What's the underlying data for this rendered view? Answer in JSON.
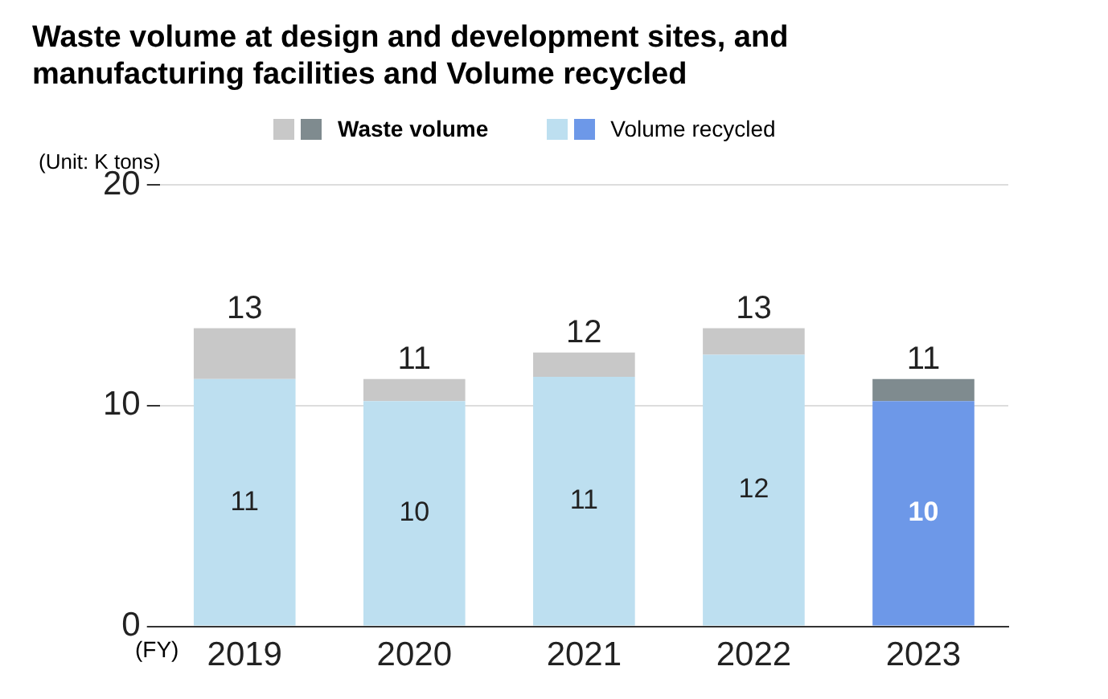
{
  "chart_data": {
    "type": "bar",
    "title": "Waste volume at design and development sites, and manufacturing facilities and Volume recycled",
    "categories": [
      "2019",
      "2020",
      "2021",
      "2022",
      "2023"
    ],
    "stacked": true,
    "series": [
      {
        "name": "Volume recycled",
        "color": "#bddff0",
        "colors": [
          "#bddff0",
          "#bddff0",
          "#bddff0",
          "#bddff0",
          "#6d98e8"
        ],
        "values": [
          11.2,
          10.2,
          11.3,
          12.3,
          10.2
        ],
        "value_labels": [
          "11",
          "10",
          "11",
          "12",
          "10"
        ]
      },
      {
        "name": "Waste volume",
        "color": "#c8c8c8",
        "colors": [
          "#c8c8c8",
          "#c8c8c8",
          "#c8c8c8",
          "#c8c8c8",
          "#7f8b8f"
        ],
        "values": [
          2.3,
          1.0,
          1.1,
          1.2,
          1.0
        ]
      }
    ],
    "totals": [
      "13",
      "11",
      "12",
      "13",
      "11"
    ],
    "ylim": [
      0,
      20
    ],
    "yticks": [
      0,
      10,
      20
    ],
    "grid": "y",
    "legend": "top",
    "annotations": [
      "(Unit: K tons)",
      "(FY)"
    ]
  }
}
